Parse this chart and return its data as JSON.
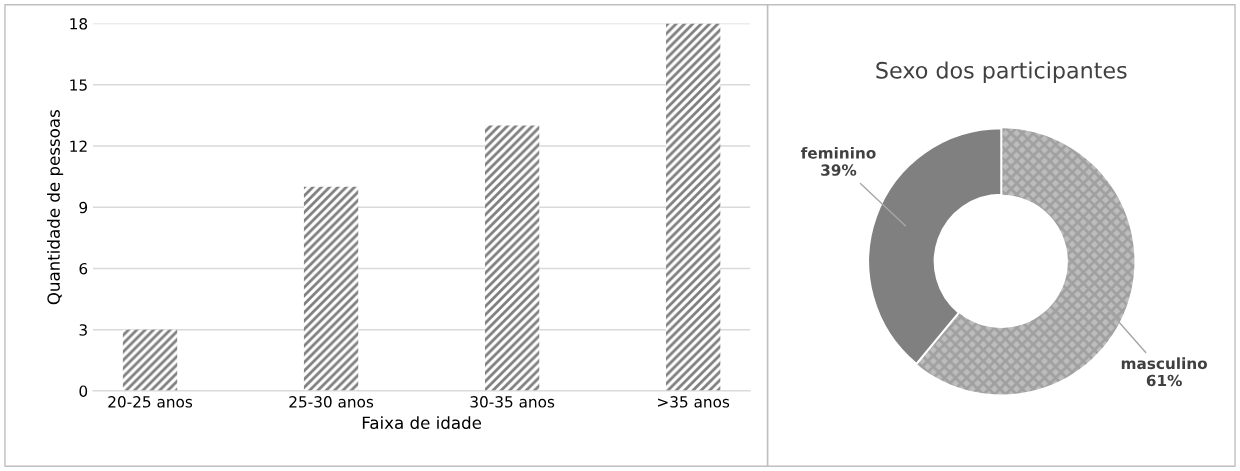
{
  "chart_data": [
    {
      "type": "bar",
      "categories": [
        "20-25 anos",
        "25-30 anos",
        "30-35 anos",
        ">35 anos"
      ],
      "values": [
        3,
        10,
        13,
        18
      ],
      "color": "#7f7f7f",
      "xlabel": "Faixa de idade",
      "ylabel": "Quantidade de pessoas",
      "ylim": [
        0,
        18
      ],
      "yticks": [
        0,
        3,
        6,
        9,
        12,
        15,
        18
      ],
      "grid": "y"
    },
    {
      "type": "donut",
      "title": "Sexo dos participantes",
      "categories": [
        "masculino",
        "feminino"
      ],
      "values": [
        61,
        39
      ],
      "colors": [
        "#bdbdbd",
        "#808080"
      ],
      "value_labels": [
        "61%",
        "39%"
      ]
    }
  ]
}
